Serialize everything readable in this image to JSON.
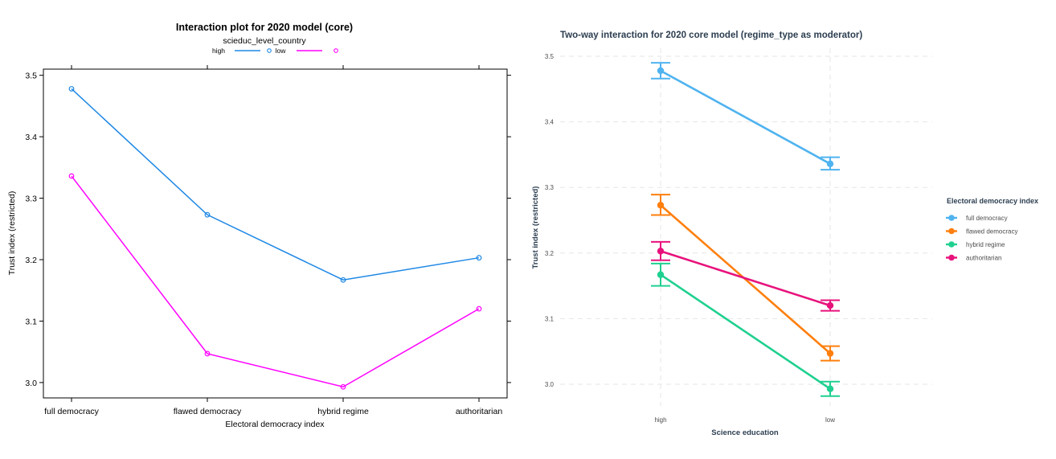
{
  "chart_data": [
    {
      "type": "line",
      "title": "Interaction plot for 2020 model (core)",
      "legend_title": "scieduc_level_country",
      "legend_placement": "top-center",
      "xlabel": "Electoral democracy index",
      "ylabel": "Trust index (restricted)",
      "categories": [
        "full democracy",
        "flawed democracy",
        "hybrid regime",
        "authoritarian"
      ],
      "ylim": [
        2.975,
        3.51
      ],
      "yticks": [
        "3.0",
        "3.1",
        "3.2",
        "3.3",
        "3.4",
        "3.5"
      ],
      "grid": false,
      "series": [
        {
          "name": "high",
          "color": "#1e88e5",
          "values": [
            3.478,
            3.273,
            3.167,
            3.203
          ]
        },
        {
          "name": "low",
          "color": "#ff00ff",
          "values": [
            3.336,
            3.047,
            2.993,
            3.12
          ]
        }
      ]
    },
    {
      "type": "line",
      "title": "Two-way interaction for 2020 core model (regime_type as moderator)",
      "legend_title": "Electoral democracy index",
      "legend_placement": "right",
      "xlabel": "Science education",
      "ylabel": "Trust index (restricted)",
      "categories": [
        "high",
        "low"
      ],
      "ylim": [
        2.975,
        3.51
      ],
      "yticks": [
        "3.0",
        "3.1",
        "3.2",
        "3.3",
        "3.4",
        "3.5"
      ],
      "grid": true,
      "error_bars": true,
      "series": [
        {
          "name": "full democracy",
          "color": "#4fb3f0",
          "values": [
            3.478,
            3.336
          ],
          "lower": [
            3.466,
            3.327
          ],
          "upper": [
            3.49,
            3.346
          ]
        },
        {
          "name": "flawed democracy",
          "color": "#ff7f0e",
          "values": [
            3.273,
            3.047
          ],
          "lower": [
            3.258,
            3.036
          ],
          "upper": [
            3.289,
            3.058
          ]
        },
        {
          "name": "hybrid regime",
          "color": "#1fd090",
          "values": [
            3.167,
            2.993
          ],
          "lower": [
            3.15,
            2.982
          ],
          "upper": [
            3.184,
            3.004
          ]
        },
        {
          "name": "authoritarian",
          "color": "#e8127c",
          "values": [
            3.203,
            3.12
          ],
          "lower": [
            3.189,
            3.112
          ],
          "upper": [
            3.217,
            3.128
          ]
        }
      ]
    }
  ]
}
